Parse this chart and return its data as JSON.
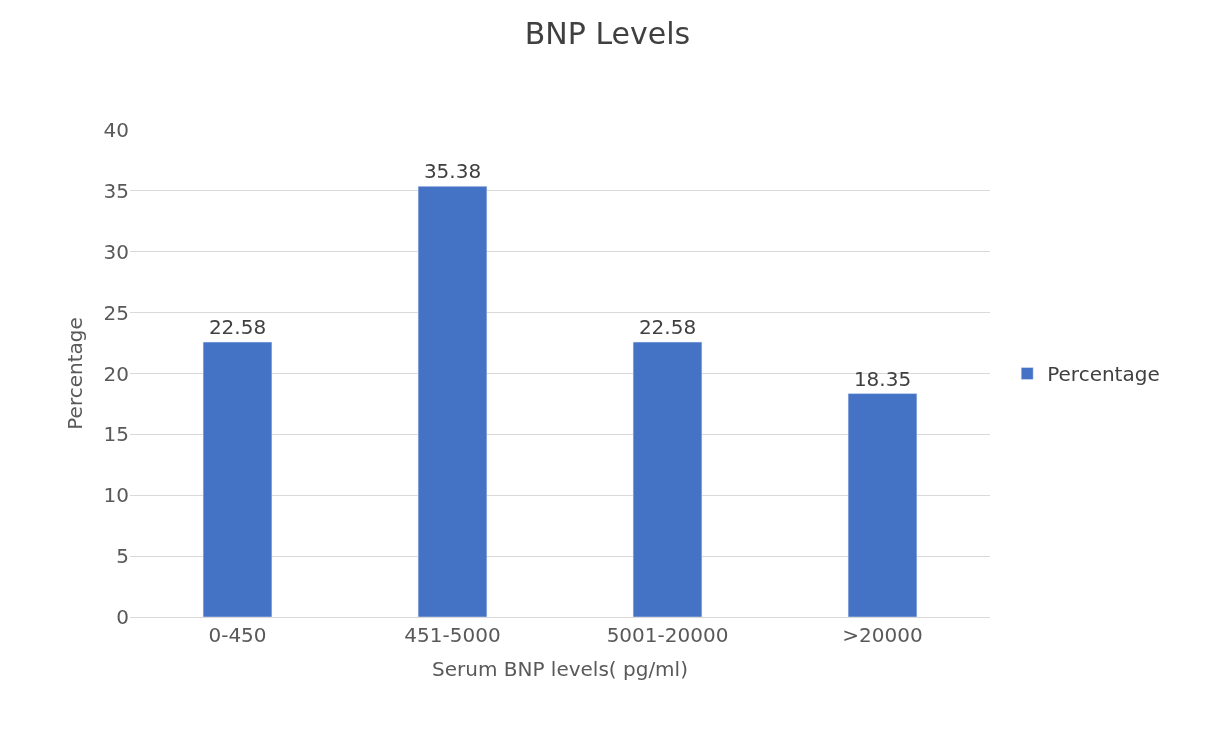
{
  "chart_data": {
    "type": "bar",
    "title": "BNP Levels",
    "xlabel": "Serum BNP levels( pg/ml)",
    "ylabel": "Percentage",
    "categories": [
      "0-450",
      "451-5000",
      "5001-20000",
      ">20000"
    ],
    "series": [
      {
        "name": "Percentage",
        "color": "#4472c4",
        "values": [
          22.58,
          35.38,
          22.58,
          18.35
        ]
      }
    ],
    "ylim": [
      0,
      40
    ],
    "yticks": [
      0,
      5,
      10,
      15,
      20,
      25,
      30,
      35,
      40
    ],
    "grid": "y",
    "legend": "right",
    "data_labels": true
  }
}
